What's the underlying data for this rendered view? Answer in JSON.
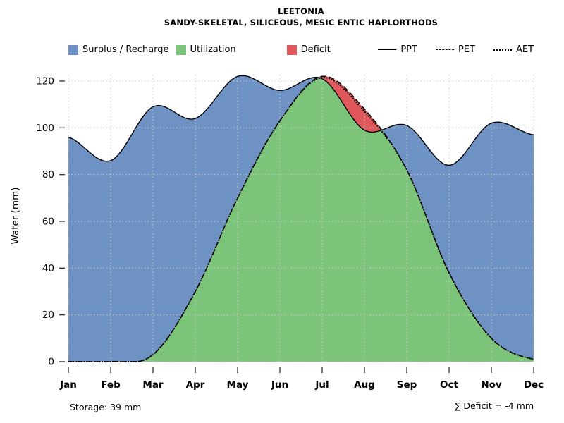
{
  "header": {
    "title": "LEETONIA",
    "subtitle": "SANDY-SKELETAL, SILICEOUS, MESIC ENTIC HAPLORTHODS"
  },
  "legend": {
    "areas": [
      {
        "label": "Surplus / Recharge",
        "color": "#6D92C3"
      },
      {
        "label": "Utilization",
        "color": "#7CC47A"
      },
      {
        "label": "Deficit",
        "color": "#E0585C"
      }
    ],
    "lines": [
      {
        "label": "PPT",
        "style": "solid"
      },
      {
        "label": "PET",
        "style": "dashed"
      },
      {
        "label": "AET",
        "style": "dotted"
      }
    ]
  },
  "footer": {
    "storage": "Storage: 39 mm",
    "deficit_summary": "∑ Deficit = -4 mm"
  },
  "chart_data": {
    "type": "area",
    "title": "LEETONIA",
    "subtitle": "SANDY-SKELETAL, SILICEOUS, MESIC ENTIC HAPLORTHODS",
    "ylabel": "Water (mm)",
    "categories": [
      "Jan",
      "Feb",
      "Mar",
      "Apr",
      "May",
      "Jun",
      "Jul",
      "Aug",
      "Sep",
      "Oct",
      "Nov",
      "Dec"
    ],
    "series": [
      {
        "name": "PPT",
        "line": "solid",
        "values": [
          96,
          86,
          109,
          104,
          122,
          116,
          121,
          99,
          101,
          84,
          102,
          97
        ]
      },
      {
        "name": "PET",
        "line": "dashed",
        "values": [
          0,
          0,
          3,
          30,
          70,
          103,
          122,
          108,
          82,
          38,
          10,
          1
        ]
      },
      {
        "name": "AET",
        "line": "dotted",
        "values": [
          0,
          0,
          3,
          30,
          70,
          103,
          121.5,
          107,
          82,
          38,
          10,
          1
        ]
      }
    ],
    "areas": [
      {
        "name": "Surplus / Recharge",
        "color": "#6D92C3",
        "region": "between PET (or AET) and PPT where PPT is greater"
      },
      {
        "name": "Utilization",
        "color": "#7CC47A",
        "region": "under AET"
      },
      {
        "name": "Deficit",
        "color": "#E0585C",
        "region": "between PPT and PET where PET is greater"
      }
    ],
    "ylim": [
      0,
      130
    ],
    "yticks": [
      0,
      20,
      40,
      60,
      80,
      100,
      120
    ],
    "grid": true,
    "legend_position": "top",
    "storage_mm": 39,
    "deficit_sum_mm": -4
  }
}
